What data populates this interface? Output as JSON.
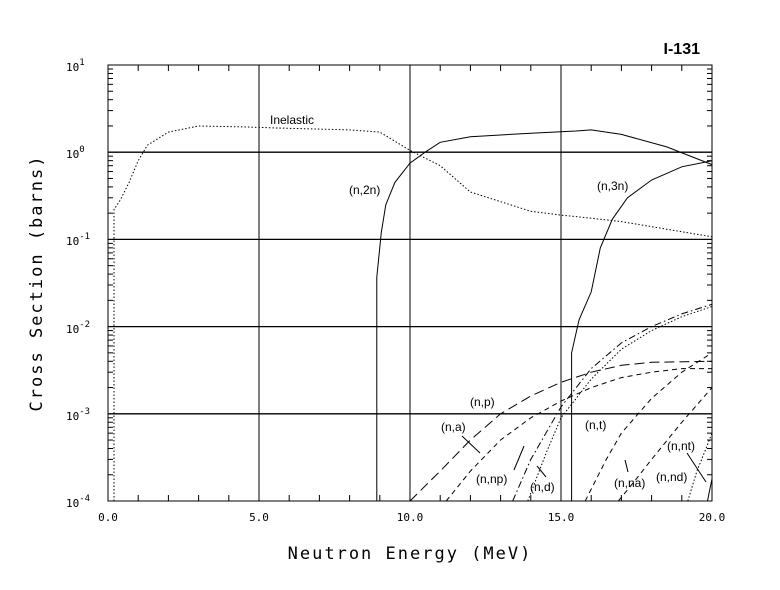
{
  "chart_data": {
    "type": "line",
    "title": "I-131",
    "xlabel": "Neutron Energy (MeV)",
    "ylabel": "Cross Section (barns)",
    "xlim": [
      0,
      20
    ],
    "ylim": [
      0.0001,
      10
    ],
    "yscale": "log",
    "grid": true,
    "xticks": [
      "0.0",
      "5.0",
      "10.0",
      "15.0",
      "20.0"
    ],
    "yticks": [
      {
        "base": "10",
        "exp": "1"
      },
      {
        "base": "10",
        "exp": "0"
      },
      {
        "base": "10",
        "exp": "-1"
      },
      {
        "base": "10",
        "exp": "-2"
      },
      {
        "base": "10",
        "exp": "-3"
      },
      {
        "base": "10",
        "exp": "-4"
      }
    ],
    "series": [
      {
        "name": "Inelastic",
        "style": "dotted",
        "points": [
          [
            0.2,
            0.0001
          ],
          [
            0.2,
            0.22
          ],
          [
            0.4,
            0.28
          ],
          [
            0.7,
            0.45
          ],
          [
            1.0,
            0.8
          ],
          [
            1.3,
            1.2
          ],
          [
            2.0,
            1.7
          ],
          [
            3.0,
            2.0
          ],
          [
            4.5,
            1.95
          ],
          [
            5.5,
            1.9
          ],
          [
            8.0,
            1.8
          ],
          [
            9.0,
            1.7
          ],
          [
            10.0,
            1.05
          ],
          [
            11.0,
            0.7
          ],
          [
            12.0,
            0.35
          ],
          [
            14.0,
            0.21
          ],
          [
            15.0,
            0.19
          ],
          [
            16.0,
            0.175
          ],
          [
            17.0,
            0.16
          ],
          [
            20.0,
            0.107
          ]
        ]
      },
      {
        "name": "(n,2n)",
        "style": "solid",
        "points": [
          [
            8.9,
            0.0001
          ],
          [
            8.9,
            0.037
          ],
          [
            9.05,
            0.12
          ],
          [
            9.2,
            0.25
          ],
          [
            9.5,
            0.45
          ],
          [
            10.0,
            0.75
          ],
          [
            10.5,
            1.0
          ],
          [
            11.0,
            1.3
          ],
          [
            12.0,
            1.5
          ],
          [
            14.0,
            1.65
          ],
          [
            15.5,
            1.75
          ],
          [
            16.0,
            1.8
          ],
          [
            17.0,
            1.6
          ],
          [
            18.5,
            1.15
          ],
          [
            20.0,
            0.72
          ]
        ]
      },
      {
        "name": "(n,3n)",
        "style": "solid",
        "points": [
          [
            15.35,
            0.0001
          ],
          [
            15.35,
            0.005
          ],
          [
            15.6,
            0.012
          ],
          [
            16.0,
            0.025
          ],
          [
            16.3,
            0.08
          ],
          [
            16.7,
            0.17
          ],
          [
            17.2,
            0.3
          ],
          [
            18.0,
            0.48
          ],
          [
            19.0,
            0.68
          ],
          [
            20.0,
            0.8
          ]
        ]
      },
      {
        "name": "(n,p)",
        "style": "longdash",
        "points": [
          [
            10.0,
            0.0001
          ],
          [
            11.0,
            0.00022
          ],
          [
            12.0,
            0.0005
          ],
          [
            13.0,
            0.001
          ],
          [
            14.0,
            0.0016
          ],
          [
            15.0,
            0.0023
          ],
          [
            16.0,
            0.003
          ],
          [
            17.0,
            0.0036
          ],
          [
            18.0,
            0.0039
          ],
          [
            20.0,
            0.004
          ]
        ]
      },
      {
        "name": "(n,a)",
        "style": "dashed",
        "points": [
          [
            11.2,
            0.0001
          ],
          [
            12.0,
            0.00022
          ],
          [
            13.0,
            0.0005
          ],
          [
            14.0,
            0.0009
          ],
          [
            15.0,
            0.0014
          ],
          [
            16.0,
            0.002
          ],
          [
            17.0,
            0.0026
          ],
          [
            18.0,
            0.003
          ],
          [
            19.0,
            0.0033
          ],
          [
            20.0,
            0.0033
          ]
        ]
      },
      {
        "name": "(n,np)",
        "style": "dashdot",
        "points": [
          [
            13.4,
            0.0001
          ],
          [
            14.0,
            0.0003
          ],
          [
            15.0,
            0.0012
          ],
          [
            16.0,
            0.0033
          ],
          [
            17.0,
            0.0065
          ],
          [
            18.0,
            0.01
          ],
          [
            19.0,
            0.014
          ],
          [
            20.0,
            0.018
          ]
        ]
      },
      {
        "name": "(n,d)",
        "style": "dotted",
        "points": [
          [
            13.9,
            0.0001
          ],
          [
            14.5,
            0.00035
          ],
          [
            15.0,
            0.0009
          ],
          [
            16.0,
            0.0025
          ],
          [
            17.0,
            0.0055
          ],
          [
            18.0,
            0.009
          ],
          [
            19.0,
            0.013
          ],
          [
            20.0,
            0.017
          ]
        ]
      },
      {
        "name": "(n,t)",
        "style": "dashed",
        "points": [
          [
            15.8,
            0.0001
          ],
          [
            16.5,
            0.0003
          ],
          [
            17.0,
            0.0006
          ],
          [
            18.0,
            0.0015
          ],
          [
            19.0,
            0.003
          ],
          [
            20.0,
            0.005
          ]
        ]
      },
      {
        "name": "(n,na)",
        "style": "dashed",
        "points": [
          [
            16.9,
            0.0001
          ],
          [
            17.5,
            0.00018
          ],
          [
            18.0,
            0.0003
          ],
          [
            19.0,
            0.0008
          ],
          [
            20.0,
            0.002
          ]
        ]
      },
      {
        "name": "(n,nd)",
        "style": "dotted",
        "points": [
          [
            19.2,
            0.0001
          ],
          [
            19.5,
            0.00022
          ],
          [
            19.8,
            0.0004
          ],
          [
            20.0,
            0.0006
          ]
        ]
      },
      {
        "name": "(n,nt)",
        "style": "solid",
        "points": [
          [
            19.85,
            0.0001
          ],
          [
            20.0,
            0.00018
          ]
        ]
      }
    ]
  }
}
